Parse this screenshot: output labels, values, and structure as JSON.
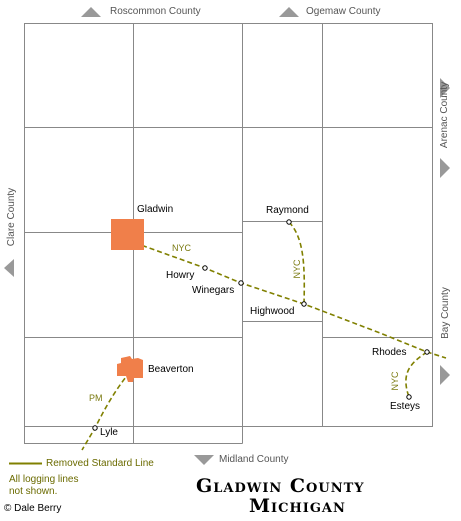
{
  "map": {
    "title_line1": "Gladwin County",
    "title_line2": "Michigan",
    "copyright": "© Dale Berry",
    "colors": {
      "grid": "#888888",
      "rail": "#808000",
      "city_fill": "#f07f4a",
      "arrow": "#999999"
    },
    "neighbors": {
      "north_left": "Roscommon County",
      "north_right": "Ogemaw County",
      "south": "Midland County",
      "west": "Clare County",
      "east_upper": "Arenac County",
      "east_lower": "Bay County"
    },
    "places": {
      "gladwin": "Gladwin",
      "beaverton": "Beaverton",
      "raymond": "Raymond",
      "howry": "Howry",
      "winegars": "Winegars",
      "highwood": "Highwood",
      "rhodes": "Rhodes",
      "esteys": "Esteys",
      "lyle": "Lyle"
    },
    "railroads": {
      "nyc_main": "NYC",
      "nyc_branch": "NYC",
      "nyc_esteys": "NYC",
      "pm": "PM"
    },
    "legend": {
      "line_label": "Removed Standard Line",
      "note": "All logging lines not shown."
    }
  }
}
